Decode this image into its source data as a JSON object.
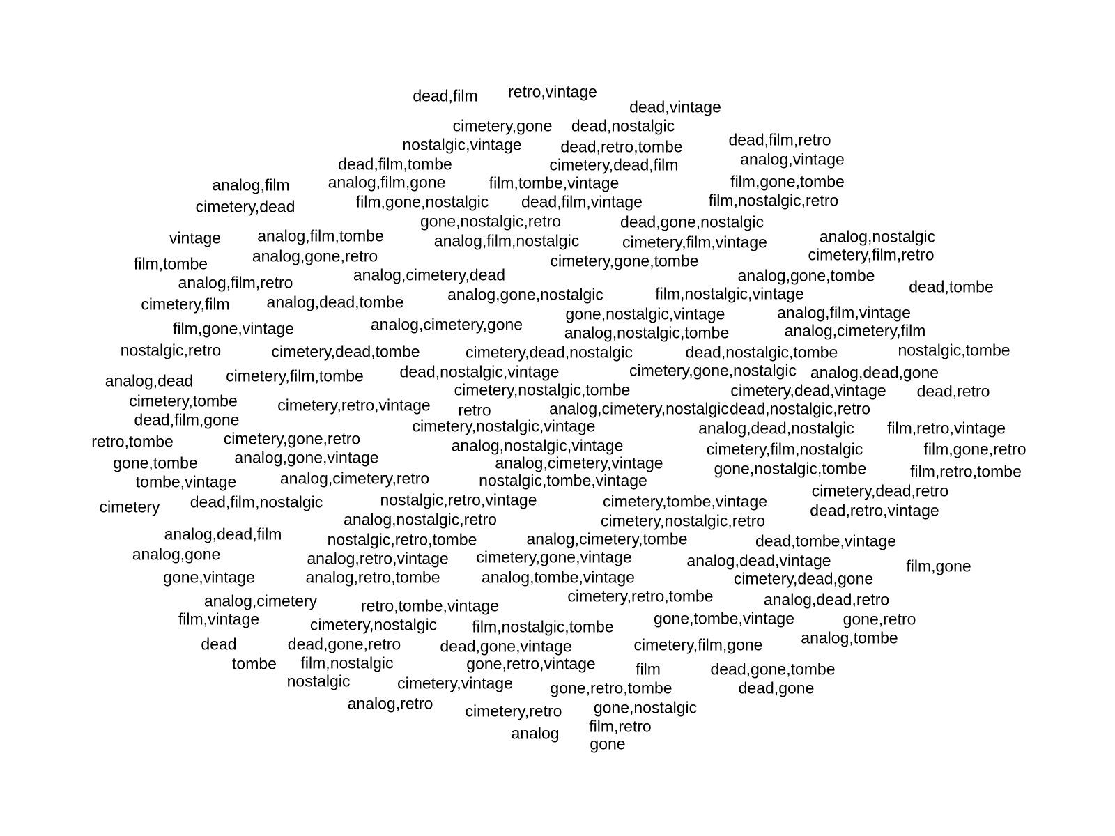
{
  "text_color": "#000000",
  "background_color": "#ffffff",
  "words": [
    "dead,film",
    "retro,vintage",
    "dead,vintage",
    "cimetery,gone",
    "dead,nostalgic",
    "nostalgic,vintage",
    "dead,retro,tombe",
    "dead,film,retro",
    "dead,film,tombe",
    "cimetery,dead,film",
    "analog,vintage",
    "analog,film",
    "analog,film,gone",
    "film,tombe,vintage",
    "film,gone,tombe",
    "cimetery,dead",
    "film,gone,nostalgic",
    "dead,film,vintage",
    "film,nostalgic,retro",
    "gone,nostalgic,retro",
    "dead,gone,nostalgic",
    "vintage",
    "analog,film,tombe",
    "analog,film,nostalgic",
    "cimetery,film,vintage",
    "analog,nostalgic",
    "film,tombe",
    "analog,gone,retro",
    "cimetery,gone,tombe",
    "cimetery,film,retro",
    "analog,film,retro",
    "analog,cimetery,dead",
    "analog,gone,tombe",
    "dead,tombe",
    "cimetery,film",
    "analog,dead,tombe",
    "analog,gone,nostalgic",
    "film,nostalgic,vintage",
    "gone,nostalgic,vintage",
    "analog,film,vintage",
    "film,gone,vintage",
    "analog,cimetery,gone",
    "analog,nostalgic,tombe",
    "analog,cimetery,film",
    "nostalgic,retro",
    "cimetery,dead,tombe",
    "cimetery,dead,nostalgic",
    "dead,nostalgic,tombe",
    "nostalgic,tombe",
    "analog,dead",
    "cimetery,film,tombe",
    "dead,nostalgic,vintage",
    "cimetery,gone,nostalgic",
    "analog,dead,gone",
    "cimetery,nostalgic,tombe",
    "cimetery,dead,vintage",
    "dead,retro",
    "cimetery,tombe",
    "cimetery,retro,vintage",
    "retro",
    "analog,cimetery,nostalgic",
    "dead,nostalgic,retro",
    "dead,film,gone",
    "cimetery,nostalgic,vintage",
    "analog,dead,nostalgic",
    "film,retro,vintage",
    "retro,tombe",
    "cimetery,gone,retro",
    "analog,nostalgic,vintage",
    "cimetery,film,nostalgic",
    "film,gone,retro",
    "gone,tombe",
    "analog,gone,vintage",
    "analog,cimetery,vintage",
    "gone,nostalgic,tombe",
    "film,retro,tombe",
    "tombe,vintage",
    "analog,cimetery,retro",
    "nostalgic,tombe,vintage",
    "cimetery",
    "dead,film,nostalgic",
    "nostalgic,retro,vintage",
    "cimetery,tombe,vintage",
    "cimetery,dead,retro",
    "analog,nostalgic,retro",
    "cimetery,nostalgic,retro",
    "dead,retro,vintage",
    "analog,dead,film",
    "nostalgic,retro,tombe",
    "analog,cimetery,tombe",
    "dead,tombe,vintage",
    "analog,gone",
    "analog,retro,vintage",
    "cimetery,gone,vintage",
    "analog,dead,vintage",
    "film,gone",
    "gone,vintage",
    "analog,retro,tombe",
    "analog,tombe,vintage",
    "cimetery,dead,gone",
    "analog,cimetery",
    "retro,tombe,vintage",
    "cimetery,retro,tombe",
    "analog,dead,retro",
    "film,vintage",
    "cimetery,nostalgic",
    "film,nostalgic,tombe",
    "gone,tombe,vintage",
    "gone,retro",
    "dead",
    "dead,gone,retro",
    "dead,gone,vintage",
    "cimetery,film,gone",
    "analog,tombe",
    "tombe",
    "film,nostalgic",
    "gone,retro,vintage",
    "film",
    "dead,gone,tombe",
    "nostalgic",
    "cimetery,vintage",
    "gone,retro,tombe",
    "dead,gone",
    "analog,retro",
    "cimetery,retro",
    "gone,nostalgic",
    "analog",
    "film,retro",
    "gone"
  ]
}
